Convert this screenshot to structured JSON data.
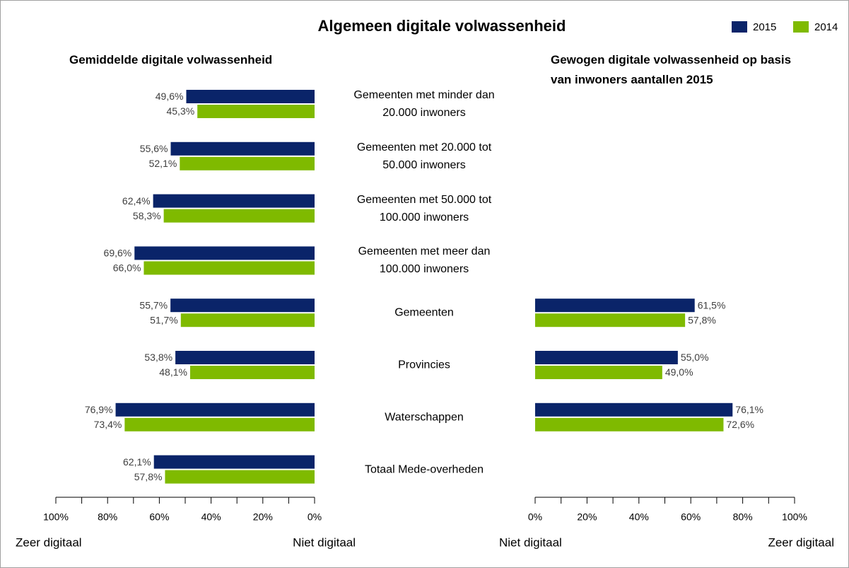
{
  "title": "Algemeen digitale volwassenheid",
  "chart_data": [
    {
      "type": "bar",
      "orientation": "horizontal",
      "title": "Gemiddelde digitale volwassenheid",
      "categories": [
        "Gemeenten met minder dan\n20.000 inwoners",
        "Gemeenten met 20.000 tot\n50.000 inwoners",
        "Gemeenten met 50.000 tot\n100.000 inwoners",
        "Gemeenten met meer dan\n100.000 inwoners",
        "Gemeenten",
        "Provincies",
        "Waterschappen",
        "Totaal Mede-overheden"
      ],
      "series": [
        {
          "name": "2015",
          "color": "#0a2469",
          "values": [
            49.6,
            55.6,
            62.4,
            69.6,
            55.7,
            53.8,
            76.9,
            62.1
          ],
          "value_labels": [
            "49,6%",
            "55,6%",
            "62,4%",
            "69,6%",
            "55,7%",
            "53,8%",
            "76,9%",
            "62,1%"
          ]
        },
        {
          "name": "2014",
          "color": "#7fba00",
          "values": [
            45.3,
            52.1,
            58.3,
            66.0,
            51.7,
            48.1,
            73.4,
            57.8
          ],
          "value_labels": [
            "45,3%",
            "52,1%",
            "58,3%",
            "66,0%",
            "51,7%",
            "48,1%",
            "73,4%",
            "57,8%"
          ]
        }
      ],
      "xlim": [
        100,
        0
      ],
      "xticks": [
        {
          "value": 100,
          "label": "100%"
        },
        {
          "value": 80,
          "label": "80%"
        },
        {
          "value": 60,
          "label": "60%"
        },
        {
          "value": 40,
          "label": "40%"
        },
        {
          "value": 20,
          "label": "20%"
        },
        {
          "value": 0,
          "label": "0%"
        }
      ],
      "minor_xticks": [
        90,
        70,
        50,
        30,
        10
      ],
      "end_labels": [
        "Zeer digitaal",
        "Niet digitaal"
      ]
    },
    {
      "type": "bar",
      "orientation": "horizontal",
      "title": "Gewogen digitale volwassenheid op basis\nvan inwoners aantallen 2015",
      "series": [
        {
          "name": "2015",
          "color": "#0a2469",
          "values": [
            null,
            null,
            null,
            null,
            61.5,
            55.0,
            76.1,
            null
          ],
          "value_labels": [
            null,
            null,
            null,
            null,
            "61,5%",
            "55,0%",
            "76,1%",
            null
          ]
        },
        {
          "name": "2014",
          "color": "#7fba00",
          "values": [
            null,
            null,
            null,
            null,
            57.8,
            49.0,
            72.6,
            null
          ],
          "value_labels": [
            null,
            null,
            null,
            null,
            "57,8%",
            "49,0%",
            "72,6%",
            null
          ]
        }
      ],
      "xlim": [
        0,
        100
      ],
      "xticks": [
        {
          "value": 0,
          "label": "0%"
        },
        {
          "value": 20,
          "label": "20%"
        },
        {
          "value": 40,
          "label": "40%"
        },
        {
          "value": 60,
          "label": "60%"
        },
        {
          "value": 80,
          "label": "80%"
        },
        {
          "value": 100,
          "label": "100%"
        }
      ],
      "minor_xticks": [
        10,
        30,
        50,
        70,
        90
      ],
      "end_labels": [
        "Niet digitaal",
        "Zeer digitaal"
      ]
    }
  ]
}
